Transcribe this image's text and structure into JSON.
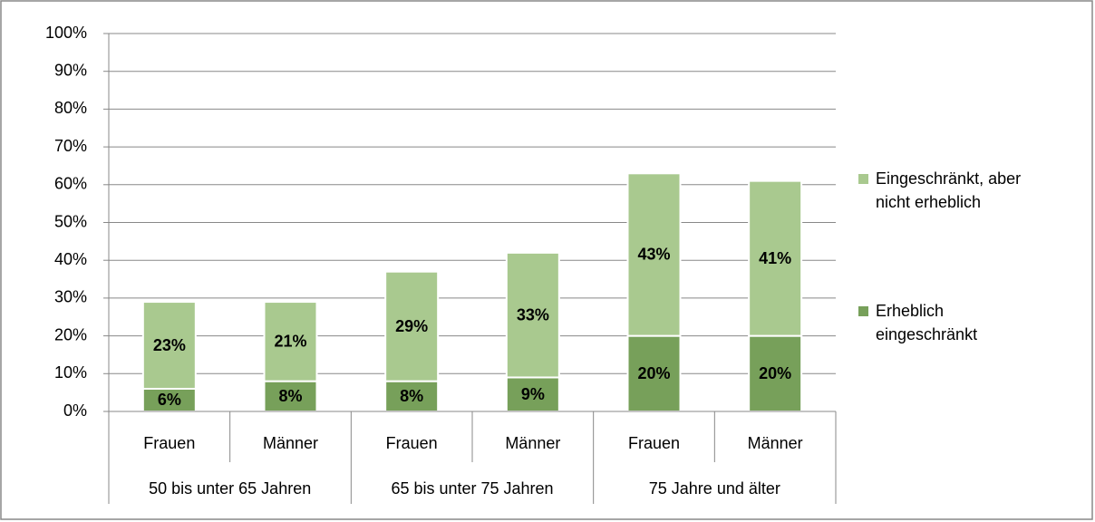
{
  "chart_data": {
    "type": "stacked_bar",
    "categories": [
      "Frauen",
      "Männer",
      "Frauen",
      "Männer",
      "Frauen",
      "Männer"
    ],
    "groups": [
      "50 bis unter 65 Jahren",
      "65 bis unter 75 Jahren",
      "75 Jahre und älter"
    ],
    "series": [
      {
        "name": "Erheblich eingeschränkt",
        "color": "#77a05a",
        "values": [
          6,
          8,
          8,
          9,
          20,
          20
        ],
        "value_labels": [
          "6%",
          "8%",
          "8%",
          "9%",
          "20%",
          "20%"
        ]
      },
      {
        "name": "Eingeschränkt, aber nicht erheblich",
        "color": "#a9c98f",
        "values": [
          23,
          21,
          29,
          33,
          43,
          41
        ],
        "value_labels": [
          "23%",
          "21%",
          "29%",
          "33%",
          "43%",
          "41%"
        ]
      }
    ],
    "ylim": [
      0,
      100
    ],
    "yticks": [
      {
        "value": 0,
        "label": "0%"
      },
      {
        "value": 10,
        "label": "10%"
      },
      {
        "value": 20,
        "label": "20%"
      },
      {
        "value": 30,
        "label": "30%"
      },
      {
        "value": 40,
        "label": "40%"
      },
      {
        "value": 50,
        "label": "50%"
      },
      {
        "value": 60,
        "label": "60%"
      },
      {
        "value": 70,
        "label": "70%"
      },
      {
        "value": 80,
        "label": "80%"
      },
      {
        "value": 90,
        "label": "90%"
      },
      {
        "value": 100,
        "label": "100%"
      }
    ],
    "grid": true,
    "legend": "right"
  }
}
